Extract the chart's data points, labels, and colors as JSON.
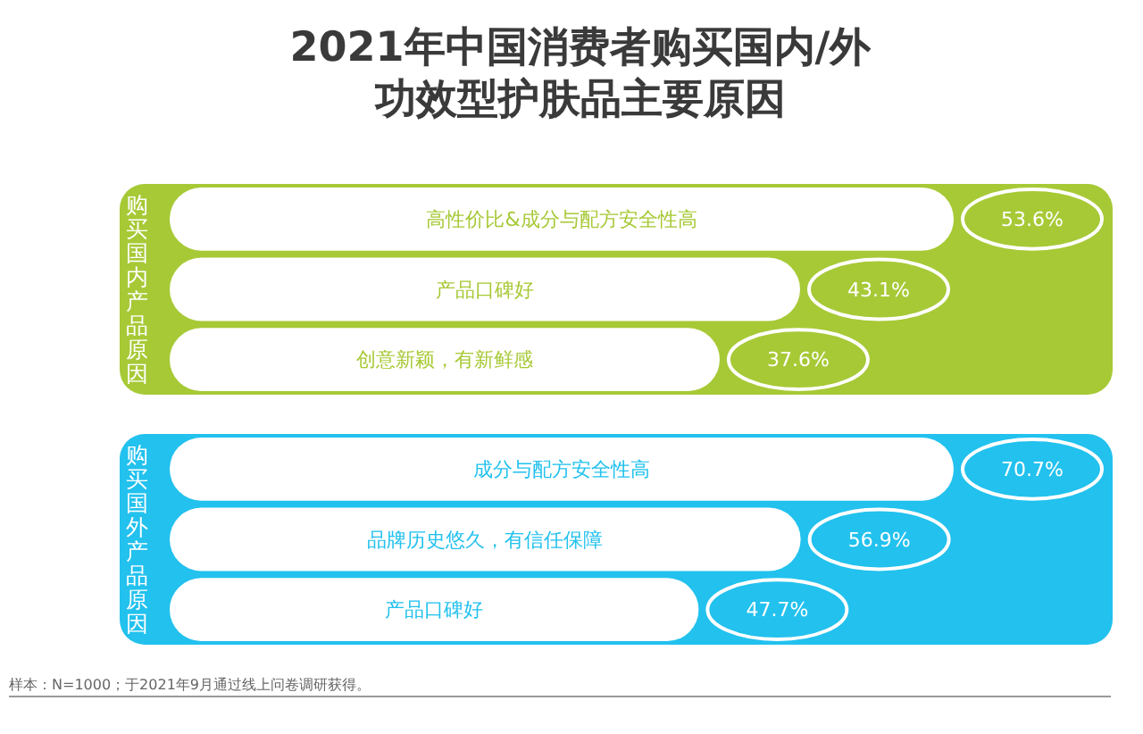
{
  "chart_data": [
    {
      "type": "bar",
      "orientation": "horizontal",
      "title": "2021年中国消费者购买国内/外功效型护肤品主要原因",
      "ylabel": "购买国内产品原因",
      "categories": [
        "高性价比&成分与配方安全性高",
        "产品口碑好",
        "创意新颖，有新鲜感"
      ],
      "values": [
        53.6,
        43.1,
        37.6
      ],
      "value_labels": [
        "53.6%",
        "43.1%",
        "37.6%"
      ],
      "color": "#ffffff"
    },
    {
      "type": "bar",
      "orientation": "horizontal",
      "ylabel": "购买国外产品原因",
      "categories": [
        "成分与配方安全性高",
        "品牌历史悠久，有信任保障",
        "产品口碑好"
      ],
      "values": [
        70.7,
        56.9,
        47.7
      ],
      "value_labels": [
        "70.7%",
        "56.9%",
        "47.7%"
      ],
      "color": "#ffffff",
      "annotations": [
        "样本：N=1000；于2021年9月通过线上问卷调研获得。"
      ]
    }
  ]
}
